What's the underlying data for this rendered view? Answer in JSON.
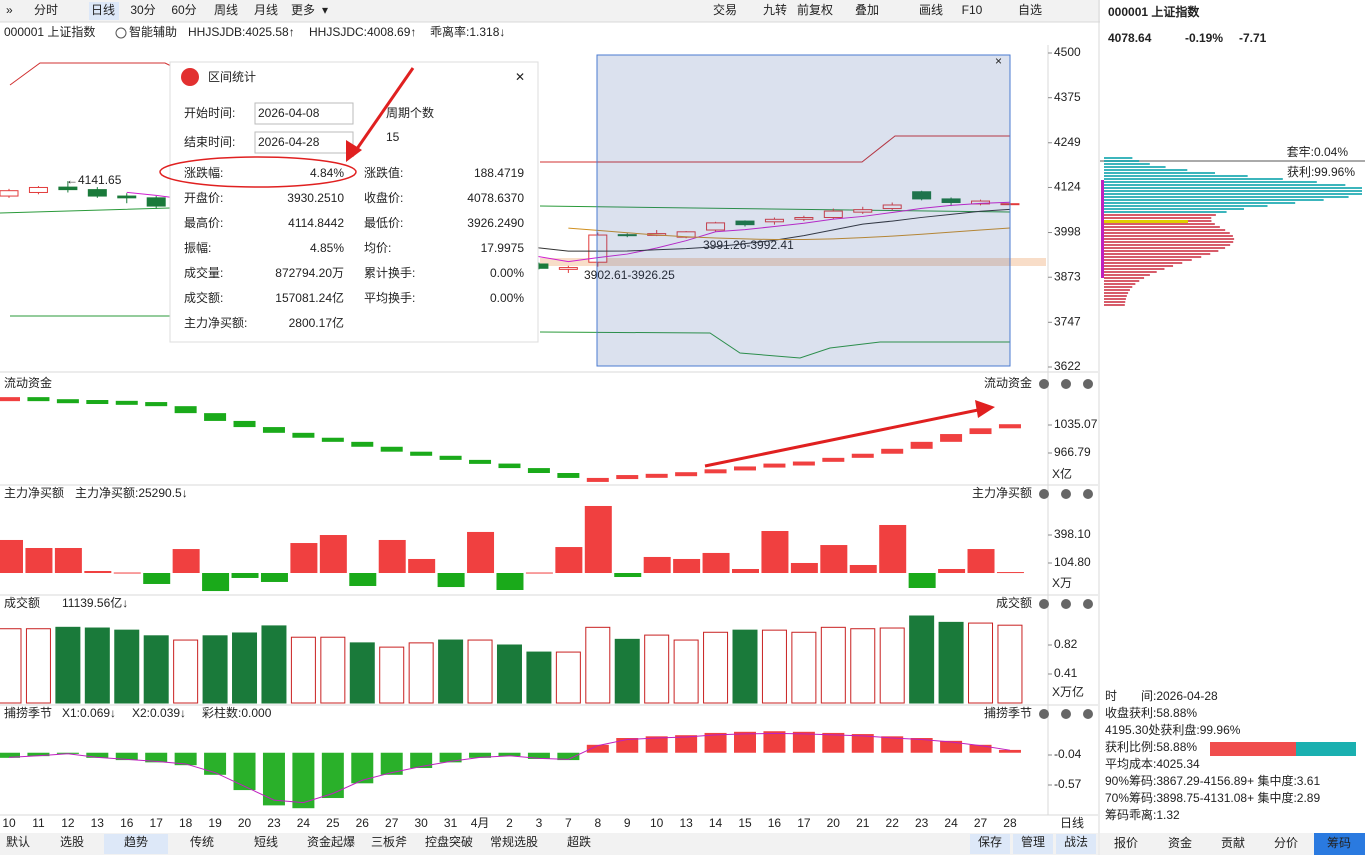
{
  "toolbar": {
    "periods": [
      "分时",
      "日线",
      "30分",
      "60分",
      "周线",
      "月线",
      "更多"
    ],
    "tools": [
      "交易",
      "九转",
      "前复权",
      "叠加",
      "画线",
      "F10",
      "自选"
    ]
  },
  "chart_header": {
    "code_name": "000001 上证指数",
    "assist": "智能辅助",
    "indicators": [
      "HHJSJDB:4025.58↑",
      "HHJSJDC:4008.69↑",
      "乖离率:1.318↓"
    ]
  },
  "price_axis": {
    "ticks": [
      4500,
      4375,
      4249,
      4124,
      3998,
      3873,
      3747,
      3622
    ]
  },
  "dates": [
    "10",
    "11",
    "12",
    "13",
    "16",
    "17",
    "18",
    "19",
    "20",
    "23",
    "24",
    "25",
    "26",
    "27",
    "30",
    "31",
    "4月",
    "2",
    "3",
    "7",
    "8",
    "9",
    "10",
    "13",
    "14",
    "15",
    "16",
    "17",
    "20",
    "21",
    "22",
    "23",
    "24",
    "27",
    "28",
    "日线"
  ],
  "candles": [
    {
      "open": 4100,
      "high": 4120,
      "low": 4095,
      "close": 4115
    },
    {
      "open": 4110,
      "high": 4128,
      "low": 4105,
      "close": 4124
    },
    {
      "open": 4125,
      "high": 4141.65,
      "low": 4110,
      "close": 4118
    },
    {
      "open": 4118,
      "high": 4125,
      "low": 4095,
      "close": 4100
    },
    {
      "open": 4100,
      "high": 4108,
      "low": 4080,
      "close": 4095
    },
    {
      "open": 4095,
      "high": 4100,
      "low": 4065,
      "close": 4072
    },
    {
      "open": 4060,
      "high": 4078,
      "low": 4050,
      "close": 4070
    },
    {
      "open": 4068,
      "high": 4072,
      "low": 4035,
      "close": 4040
    },
    {
      "open": 4040,
      "high": 4048,
      "low": 4015,
      "close": 4020
    },
    {
      "open": 4020,
      "high": 4025,
      "low": 3985,
      "close": 3990
    },
    {
      "open": 3975,
      "high": 3998,
      "low": 3965,
      "close": 3992
    },
    {
      "open": 3980,
      "high": 3996,
      "low": 3970,
      "close": 3988
    },
    {
      "open": 3988,
      "high": 3992,
      "low": 3955,
      "close": 3960
    },
    {
      "open": 3955,
      "high": 3972,
      "low": 3948,
      "close": 3968
    },
    {
      "open": 3960,
      "high": 3975,
      "low": 3950,
      "close": 3970
    },
    {
      "open": 3968,
      "high": 3970,
      "low": 3930,
      "close": 3935
    },
    {
      "open": 3928,
      "high": 3946,
      "low": 3922,
      "close": 3940
    },
    {
      "open": 3938,
      "high": 3942,
      "low": 3905,
      "close": 3910
    },
    {
      "open": 3910,
      "high": 3914,
      "low": 3895,
      "close": 3898
    },
    {
      "open": 3895,
      "high": 3905,
      "low": 3885,
      "close": 3900
    },
    {
      "open": 3915,
      "high": 3998,
      "low": 3902.61,
      "close": 3991
    },
    {
      "open": 3992,
      "high": 3996,
      "low": 3985,
      "close": 3990
    },
    {
      "open": 3990,
      "high": 4005,
      "low": 3988,
      "close": 3995
    },
    {
      "open": 3985,
      "high": 4002,
      "low": 3982,
      "close": 4000
    },
    {
      "open": 4005,
      "high": 4028,
      "low": 4000,
      "close": 4025
    },
    {
      "open": 4030,
      "high": 4032,
      "low": 4015,
      "close": 4020
    },
    {
      "open": 4028,
      "high": 4040,
      "low": 4020,
      "close": 4035
    },
    {
      "open": 4035,
      "high": 4045,
      "low": 4030,
      "close": 4040
    },
    {
      "open": 4040,
      "high": 4065,
      "low": 4035,
      "close": 4058
    },
    {
      "open": 4055,
      "high": 4070,
      "low": 4050,
      "close": 4062
    },
    {
      "open": 4065,
      "high": 4082,
      "low": 4060,
      "close": 4075
    },
    {
      "open": 4112,
      "high": 4114.84,
      "low": 4088,
      "close": 4092
    },
    {
      "open": 4092,
      "high": 4096,
      "low": 4072,
      "close": 4082
    },
    {
      "open": 4078,
      "high": 4090,
      "low": 4074,
      "close": 4086
    },
    {
      "open": 4076,
      "high": 4088,
      "low": 4070,
      "close": 4078.64
    }
  ],
  "annotations": [
    "←4141.65",
    "3991.26-3992.41",
    "3902.61-3926.25"
  ],
  "flow": {
    "title": "流动资金",
    "values": [
      1103,
      1098,
      1096,
      1094,
      1091,
      1081,
      1064,
      1045,
      1030,
      1016,
      1004,
      994,
      982,
      970,
      960,
      950,
      941,
      930,
      918,
      906,
      906,
      913,
      916,
      920,
      927,
      934,
      941,
      946,
      955,
      965,
      977,
      994,
      1013,
      1027,
      1037
    ],
    "ticks": [
      1035.07,
      966.79
    ],
    "unit": "X亿"
  },
  "net_buy": {
    "title": "主力净买额",
    "label": "主力净买额:25290.5↓",
    "values": [
      346,
      262,
      262,
      21,
      5,
      -115,
      251,
      -189,
      -52,
      -94,
      314,
      398,
      -136,
      346,
      147,
      -147,
      430,
      -178,
      5,
      272,
      702,
      -42,
      168,
      147,
      210,
      42,
      440,
      105,
      293,
      84,
      503,
      -157,
      42,
      251,
      10
    ],
    "ticks": [
      {
        "value": 398.1,
        "label": "398.10"
      },
      {
        "value": 104.8,
        "label": "104.80"
      }
    ],
    "unit": "X万"
  },
  "turnover": {
    "title": "成交额",
    "label": "11139.56亿↓",
    "values": [
      1.05,
      1.05,
      1.07,
      1.06,
      1.03,
      0.95,
      0.89,
      0.95,
      0.99,
      1.09,
      0.93,
      0.93,
      0.85,
      0.79,
      0.85,
      0.89,
      0.89,
      0.82,
      0.72,
      0.72,
      1.07,
      0.9,
      0.96,
      0.89,
      1.0,
      1.03,
      1.03,
      1.0,
      1.07,
      1.05,
      1.06,
      1.23,
      1.14,
      1.13,
      1.1
    ],
    "ticks": [
      0.82,
      0.41
    ],
    "unit": "X万亿"
  },
  "season": {
    "title": "捕捞季节",
    "labels": [
      "X1:0.069↓",
      "X2:0.039↓",
      "彩柱数:0.000"
    ],
    "values": [
      -0.09,
      -0.06,
      -0.02,
      -0.09,
      -0.13,
      -0.17,
      -0.22,
      -0.39,
      -0.66,
      -0.93,
      -0.98,
      -0.8,
      -0.54,
      -0.39,
      -0.27,
      -0.17,
      -0.09,
      -0.06,
      -0.11,
      -0.13,
      0.14,
      0.26,
      0.29,
      0.31,
      0.35,
      0.37,
      0.38,
      0.37,
      0.35,
      0.33,
      0.29,
      0.26,
      0.21,
      0.14,
      0.05
    ],
    "ticks": [
      -0.04,
      -0.57
    ]
  },
  "popup": {
    "title": "区间统计",
    "start_label": "开始时间:",
    "start": "2026-04-08",
    "end_label": "结束时间:",
    "end": "2026-04-28",
    "period_label": "周期个数",
    "period_count": "15",
    "rows": [
      [
        "涨跌幅:",
        "4.84%",
        "涨跌值:",
        "188.4719"
      ],
      [
        "开盘价:",
        "3930.2510",
        "收盘价:",
        "4078.6370"
      ],
      [
        "最高价:",
        "4114.8442",
        "最低价:",
        "3926.2490"
      ],
      [
        "振幅:",
        "4.85%",
        "均价:",
        "17.9975"
      ],
      [
        "成交量:",
        "872794.20万",
        "累计换手:",
        "0.00%"
      ],
      [
        "成交额:",
        "157081.24亿",
        "平均换手:",
        "0.00%"
      ],
      [
        "主力净买额:",
        "2800.17亿"
      ]
    ]
  },
  "quote": {
    "code_name": "000001 上证指数",
    "price": "4078.64",
    "change_pct": "-0.19%",
    "change": "-7.71"
  },
  "chips": {
    "trapped": "套牢:0.04%",
    "profit": "获利:99.96%",
    "info": [
      "时　　间:2026-04-28",
      "收盘获利:58.88%",
      "4195.30处获利盘:99.96%",
      "获利比例:58.88%",
      "平均成本:4025.34",
      "90%筹码:3867.29-4156.89+ 集中度:3.61",
      "70%筹码:3898.75-4131.08+ 集中度:2.89",
      "筹码乖离:1.32"
    ]
  },
  "bottom_tabs": [
    "默认",
    "选股",
    "趋势",
    "传统",
    "短线",
    "资金起爆",
    "三板斧",
    "控盘突破",
    "常规选股",
    "超跌"
  ],
  "bottom_actions": [
    "保存",
    "管理",
    "战法"
  ],
  "side_tabs": [
    "报价",
    "资金",
    "贡献",
    "分价",
    "筹码"
  ]
}
